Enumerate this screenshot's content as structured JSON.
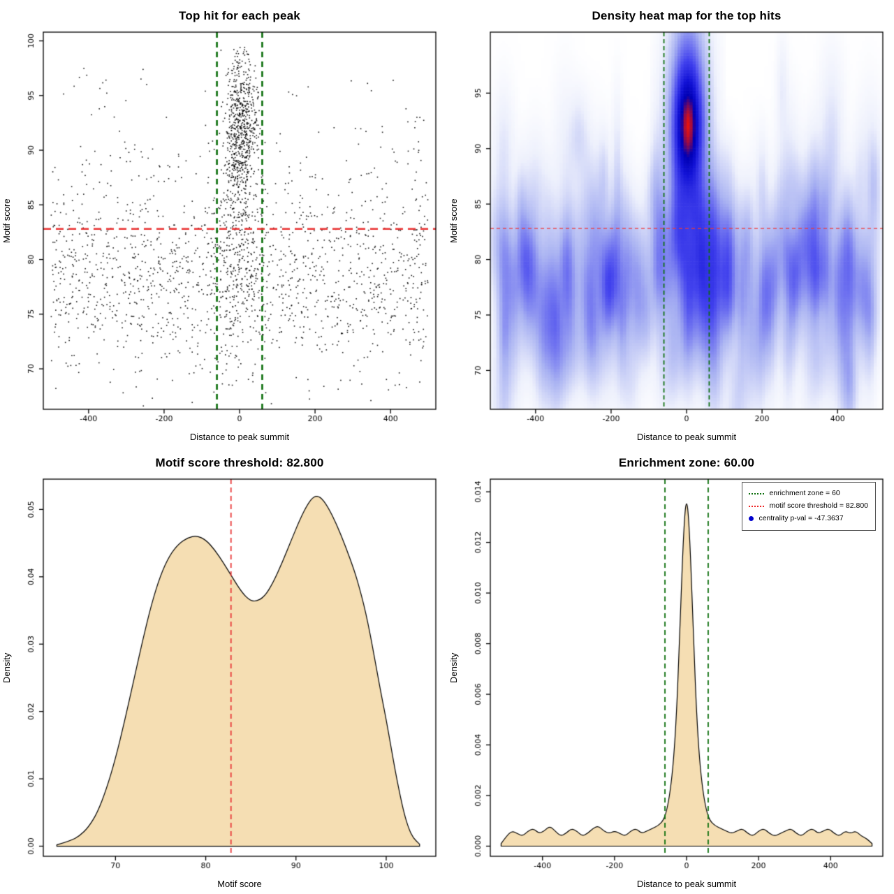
{
  "page": {
    "background": "#ffffff"
  },
  "chart_data": [
    {
      "type": "scatter",
      "title": "Top hit for each peak",
      "xlabel": "Distance to peak summit",
      "ylabel": "Motif score",
      "xlim": [
        -520,
        520
      ],
      "ylim": [
        66.3,
        100.8
      ],
      "xticks": [
        "-400",
        "-200",
        "0",
        "200",
        "400"
      ],
      "yticks": [
        "70",
        "75",
        "80",
        "85",
        "90",
        "95",
        "100"
      ],
      "point_color": "#000000",
      "seed": 42,
      "annotations": {
        "vlines": [
          {
            "x": -60,
            "color": "#0b6e0b",
            "width": 2.6,
            "dash": [
              8,
              6
            ]
          },
          {
            "x": 60,
            "color": "#0b6e0b",
            "width": 2.6,
            "dash": [
              8,
              6
            ]
          }
        ],
        "hlines": [
          {
            "y": 82.8,
            "color": "#ea3232",
            "width": 2.3,
            "dash": [
              11,
              7
            ]
          }
        ]
      },
      "clusters": [
        {
          "name": "central-high-scores",
          "n": 700,
          "x": {
            "dist": "normal",
            "mean": 3,
            "sd": 21,
            "min": -130,
            "max": 130
          },
          "y": {
            "dist": "normal",
            "mean": 92,
            "sd": 3.6,
            "min": 83.5,
            "max": 99.7
          }
        },
        {
          "name": "central-spread",
          "n": 260,
          "x": {
            "dist": "normal",
            "mean": 0,
            "sd": 34,
            "min": -180,
            "max": 180
          },
          "y": {
            "dist": "normal",
            "mean": 80.5,
            "sd": 5,
            "min": 67.5,
            "max": 89
          }
        },
        {
          "name": "background",
          "n": 1500,
          "x": {
            "dist": "uniform",
            "min": -500,
            "max": 500
          },
          "y": {
            "dist": "normal",
            "mean": 78.6,
            "sd": 4.6,
            "min": 66.5,
            "max": 94
          }
        },
        {
          "name": "background-high",
          "n": 90,
          "x": {
            "dist": "uniform",
            "min": -500,
            "max": 500
          },
          "y": {
            "dist": "uniform",
            "min": 87,
            "max": 97.5
          }
        }
      ]
    },
    {
      "type": "heatmap",
      "title": "Density heat map for the top hits",
      "xlabel": "Distance to peak summit",
      "ylabel": "Motif score",
      "xlim": [
        -520,
        520
      ],
      "ylim": [
        66.5,
        100.5
      ],
      "xticks": [
        "-400",
        "-200",
        "0",
        "200",
        "400"
      ],
      "yticks": [
        "70",
        "75",
        "80",
        "85",
        "90",
        "95"
      ],
      "seed": 7,
      "gamma": 0.55,
      "colormap": [
        {
          "t": 0.0,
          "color": "#ffffff"
        },
        {
          "t": 0.12,
          "color": "#edf0fc"
        },
        {
          "t": 0.32,
          "color": "#aab3f2"
        },
        {
          "t": 0.55,
          "color": "#4343ee"
        },
        {
          "t": 0.72,
          "color": "#1212d6"
        },
        {
          "t": 0.85,
          "color": "#0000b4"
        },
        {
          "t": 1.0,
          "color": "#e21212"
        }
      ],
      "hotspot": {
        "x": 0,
        "y": 92,
        "components": [
          {
            "sd_x": 18,
            "sd_y": 2.6,
            "w": 0.45
          },
          {
            "sd_x": 30,
            "sd_y": 5.5,
            "w": 0.55
          }
        ]
      },
      "background": {
        "streaks": 300,
        "x_min": -500,
        "x_max": 500,
        "y_mean": 78.5,
        "y_sd": 4.8
      },
      "annotations": {
        "vlines": [
          {
            "x": -60,
            "color": "#0b6e0b",
            "width": 1.7,
            "dash": [
              6,
              4
            ]
          },
          {
            "x": 60,
            "color": "#0b6e0b",
            "width": 1.7,
            "dash": [
              6,
              4
            ]
          }
        ],
        "hlines": [
          {
            "y": 82.8,
            "color": "#f03a3a",
            "width": 1.3,
            "dash": [
              5,
              4
            ]
          }
        ]
      }
    },
    {
      "type": "density",
      "title": "Motif score threshold: 82.800",
      "xlabel": "Motif score",
      "ylabel": "Density",
      "xlim": [
        62,
        105.5
      ],
      "ylim": [
        -0.0015,
        0.0545
      ],
      "xticks": [
        "70",
        "80",
        "90",
        "100"
      ],
      "yticks": [
        "0.00",
        "0.01",
        "0.02",
        "0.03",
        "0.04",
        "0.05"
      ],
      "fill_color": "#f5deb3",
      "line_color": "#000000",
      "annotations": {
        "vlines": [
          {
            "x": 82.8,
            "color": "#e93a3a",
            "width": 1.8,
            "dash": [
              7,
              5
            ]
          }
        ]
      },
      "curve": {
        "x": [
          63.5,
          65,
          66,
          67,
          68,
          69,
          70,
          71,
          72,
          73,
          74,
          75,
          76,
          77,
          78,
          79,
          80,
          81,
          82,
          83,
          84,
          84.8,
          85.5,
          86.5,
          87.5,
          88.5,
          89.5,
          90.5,
          91.3,
          92,
          92.7,
          93.5,
          94.5,
          95.5,
          96.5,
          97,
          97.5,
          98,
          98.5,
          99,
          99.5,
          100,
          100.5,
          101,
          101.5,
          102,
          102.5,
          103,
          103.7
        ],
        "y": [
          0.0002,
          0.0008,
          0.0015,
          0.0028,
          0.005,
          0.0085,
          0.013,
          0.0185,
          0.0245,
          0.0305,
          0.036,
          0.0403,
          0.0432,
          0.0449,
          0.0458,
          0.0461,
          0.0455,
          0.044,
          0.042,
          0.0398,
          0.0377,
          0.0366,
          0.0363,
          0.037,
          0.0392,
          0.0422,
          0.0455,
          0.0487,
          0.0508,
          0.052,
          0.0519,
          0.0505,
          0.0478,
          0.0445,
          0.0408,
          0.0385,
          0.036,
          0.033,
          0.0295,
          0.0258,
          0.0222,
          0.0188,
          0.015,
          0.0112,
          0.0078,
          0.0048,
          0.0026,
          0.0012,
          0.0003
        ]
      }
    },
    {
      "type": "density",
      "title": "Enrichment zone: 60.00",
      "xlabel": "Distance to peak summit",
      "ylabel": "Density",
      "xlim": [
        -545,
        545
      ],
      "ylim": [
        -0.0004,
        0.0145
      ],
      "xticks": [
        "-400",
        "-200",
        "0",
        "200",
        "400"
      ],
      "yticks": [
        "0.000",
        "0.002",
        "0.004",
        "0.006",
        "0.008",
        "0.010",
        "0.012",
        "0.014"
      ],
      "fill_color": "#f5deb3",
      "line_color": "#000000",
      "annotations": {
        "vlines": [
          {
            "x": -60,
            "color": "#0b6e0b",
            "width": 1.8,
            "dash": [
              7,
              5
            ]
          },
          {
            "x": 60,
            "color": "#0b6e0b",
            "width": 1.8,
            "dash": [
              7,
              5
            ]
          }
        ]
      },
      "curve": {
        "x": [
          -515,
          -500,
          -485,
          -470,
          -455,
          -440,
          -425,
          -410,
          -395,
          -380,
          -365,
          -350,
          -335,
          -320,
          -305,
          -290,
          -275,
          -260,
          -245,
          -230,
          -215,
          -200,
          -185,
          -170,
          -155,
          -140,
          -125,
          -110,
          -95,
          -80,
          -65,
          -55,
          -45,
          -36,
          -28,
          -21,
          -15,
          -9,
          -4,
          0,
          4,
          9,
          15,
          21,
          28,
          36,
          45,
          55,
          65,
          80,
          95,
          110,
          125,
          140,
          155,
          170,
          185,
          200,
          215,
          230,
          245,
          260,
          275,
          290,
          305,
          320,
          335,
          350,
          365,
          380,
          395,
          410,
          425,
          440,
          455,
          470,
          485,
          500,
          515
        ],
        "y": [
          0.0001,
          0.0004,
          0.0006,
          0.0005,
          0.0004,
          0.0006,
          0.0007,
          0.0005,
          0.0006,
          0.0008,
          0.0006,
          0.0004,
          0.0005,
          0.0007,
          0.0006,
          0.0004,
          0.0005,
          0.0007,
          0.0008,
          0.0006,
          0.0005,
          0.0006,
          0.0005,
          0.0004,
          0.0006,
          0.0007,
          0.0005,
          0.0006,
          0.0007,
          0.0008,
          0.001,
          0.0014,
          0.0022,
          0.0034,
          0.0052,
          0.0076,
          0.01,
          0.0121,
          0.0133,
          0.0136,
          0.0133,
          0.0121,
          0.01,
          0.0076,
          0.0052,
          0.0034,
          0.0022,
          0.0014,
          0.001,
          0.0008,
          0.0007,
          0.0006,
          0.0005,
          0.0006,
          0.0007,
          0.0005,
          0.0004,
          0.0006,
          0.0007,
          0.0005,
          0.0004,
          0.0005,
          0.0006,
          0.0007,
          0.0005,
          0.0004,
          0.0006,
          0.0007,
          0.0005,
          0.0006,
          0.0007,
          0.0005,
          0.0004,
          0.0006,
          0.0005,
          0.0006,
          0.0004,
          0.0003,
          0.0001
        ]
      },
      "legend": {
        "items": [
          {
            "label": "enrichment zone = 60",
            "swatch": "dotted-line",
            "color": "#0b6e0b"
          },
          {
            "label": "motif score threshold = 82.800",
            "swatch": "dotted-line",
            "color": "#ee2222"
          },
          {
            "label": "centrality p-val = -47.3637",
            "swatch": "dot",
            "color": "#0000cd"
          }
        ]
      }
    }
  ]
}
